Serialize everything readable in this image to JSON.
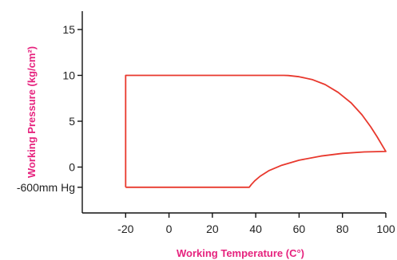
{
  "chart_data": {
    "type": "line",
    "title": "",
    "xlabel": "Working Temperature (C°)",
    "ylabel": "Working Pressure (kg/cm²)",
    "xlim": [
      -40,
      100
    ],
    "ylim": [
      -5,
      17
    ],
    "x_ticks": [
      -20,
      0,
      20,
      40,
      60,
      80,
      100
    ],
    "x_tick_labels": [
      "-20",
      "0",
      "20",
      "40",
      "60",
      "80",
      "100"
    ],
    "y_ticks": [
      -2.2,
      0,
      5,
      10,
      15
    ],
    "y_tick_labels": [
      "-600mm Hg",
      "0",
      "5",
      "10",
      "15"
    ],
    "grid": false,
    "colors": {
      "series": "#e8382d",
      "axis_title": "#e6237e",
      "axis": "#111111"
    },
    "series": [
      {
        "x": [
          -20,
          -20,
          53,
          55,
          60,
          66,
          72,
          78,
          84,
          89,
          93,
          96,
          98,
          99.5,
          100,
          100,
          90,
          80,
          70,
          60,
          52,
          46,
          42,
          39.5,
          38,
          37,
          -20
        ],
        "y": [
          -2.2,
          10,
          10,
          9.98,
          9.85,
          9.55,
          9.0,
          8.15,
          7.0,
          5.7,
          4.4,
          3.3,
          2.5,
          1.9,
          1.7,
          1.7,
          1.65,
          1.5,
          1.2,
          0.75,
          0.2,
          -0.4,
          -1.0,
          -1.5,
          -1.9,
          -2.2,
          -2.2
        ]
      }
    ]
  }
}
